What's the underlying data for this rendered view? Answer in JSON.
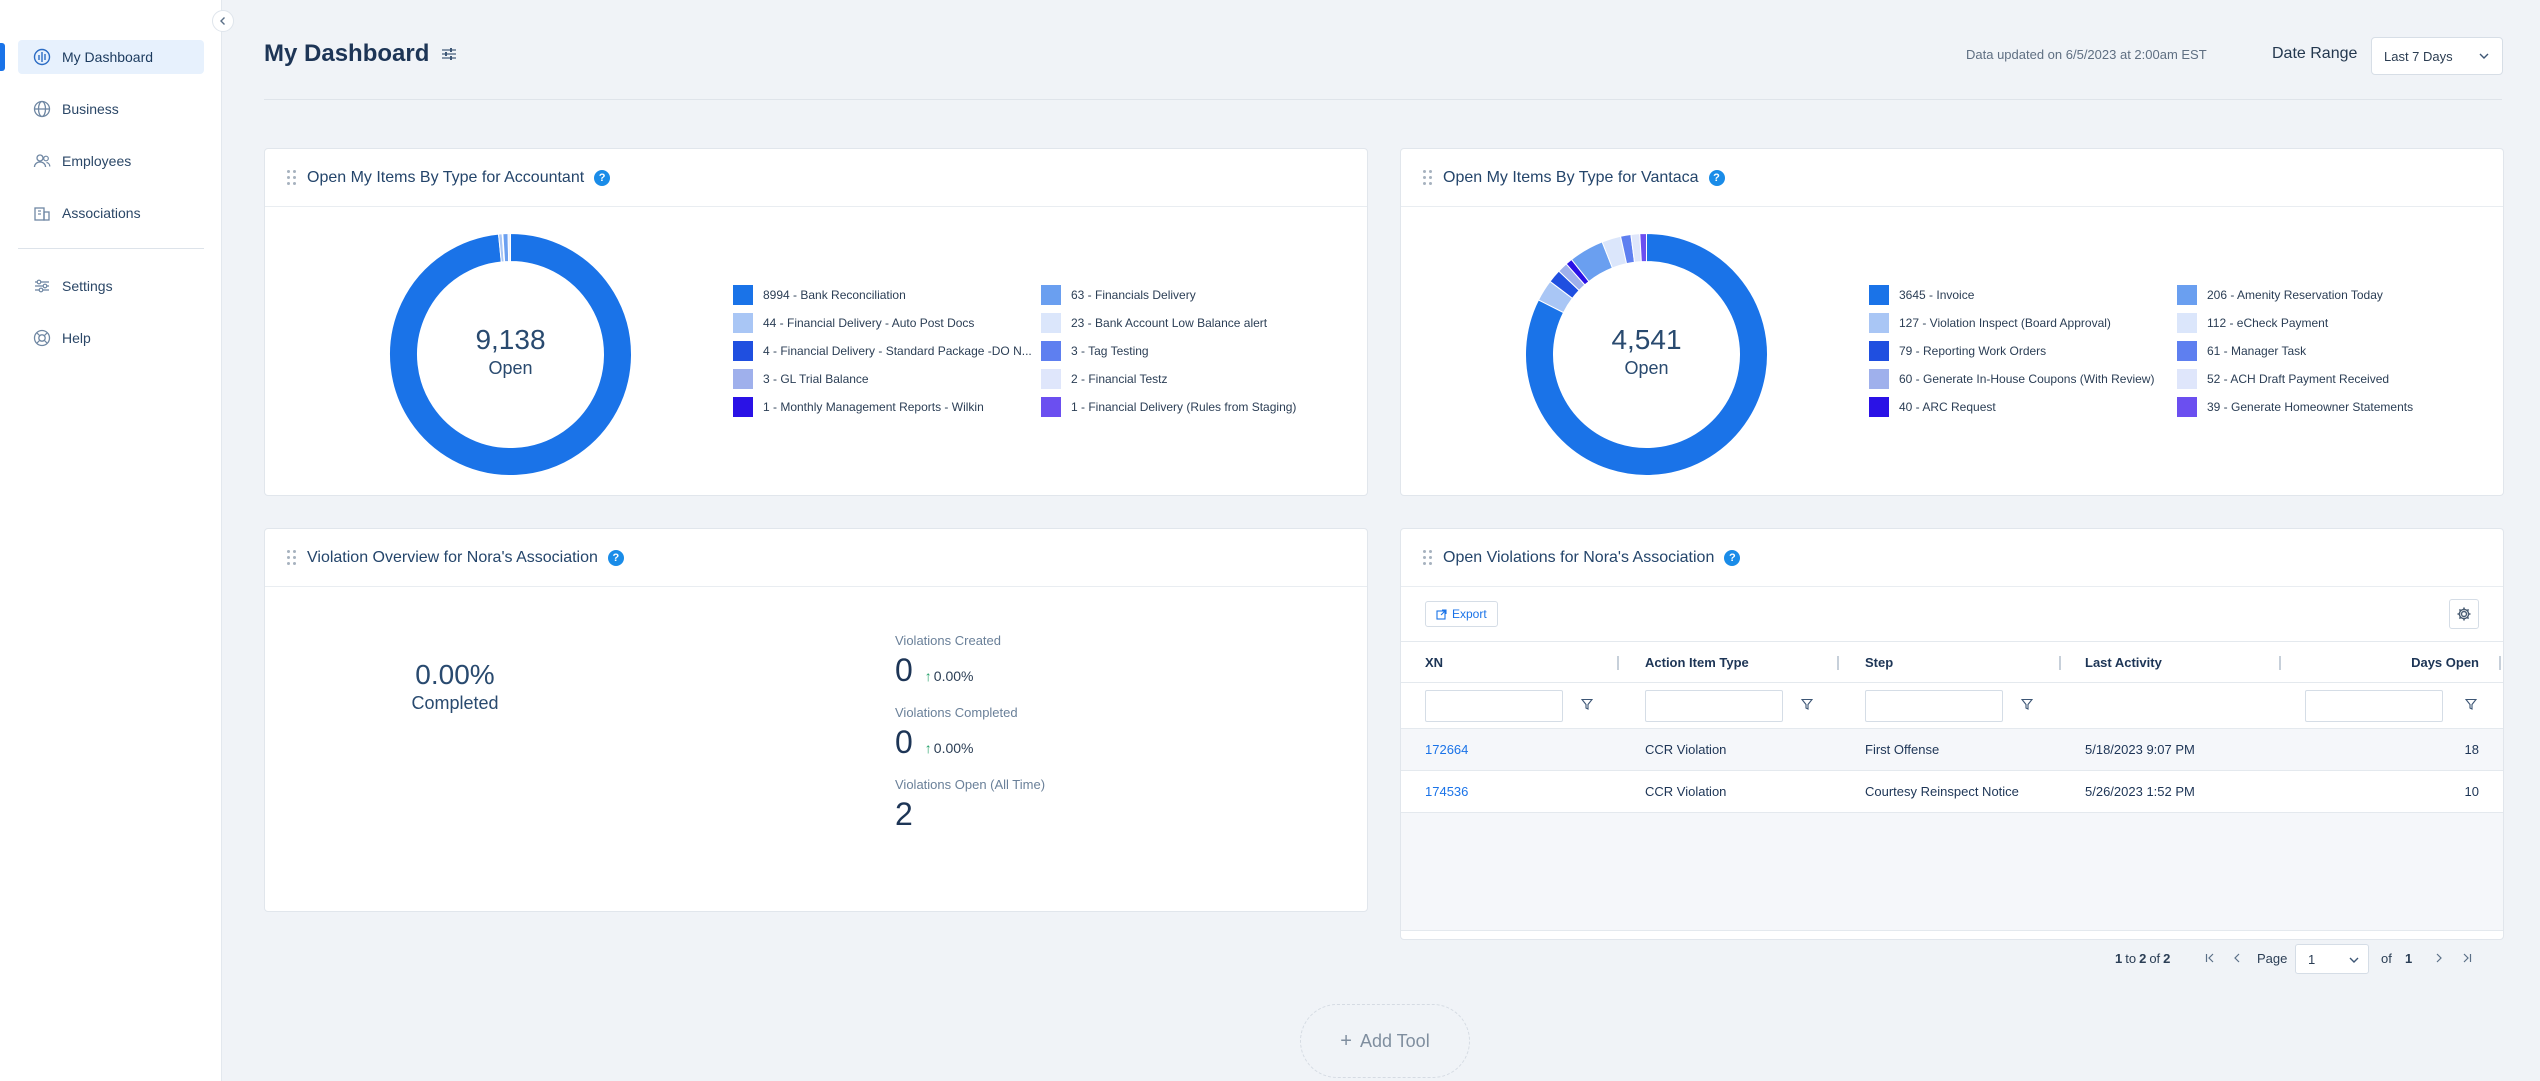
{
  "sidebar": {
    "items": [
      {
        "label": "My Dashboard",
        "icon": "dashboard-icon"
      },
      {
        "label": "Business",
        "icon": "globe-icon"
      },
      {
        "label": "Employees",
        "icon": "people-icon"
      },
      {
        "label": "Associations",
        "icon": "building-icon"
      },
      {
        "label": "Settings",
        "icon": "sliders-icon"
      },
      {
        "label": "Help",
        "icon": "lifebuoy-icon"
      }
    ],
    "active_index": 0
  },
  "header": {
    "title": "My Dashboard",
    "updated_text": "Data updated on 6/5/2023 at 2:00am EST",
    "date_range_label": "Date Range",
    "date_range_value": "Last 7 Days"
  },
  "colors": {
    "accent": "#1a73e8",
    "help_badge": "#1a8ce8",
    "positive": "#1f9d65",
    "sidebar_active_bg": "#e7f1fd"
  },
  "cards": {
    "accountant": {
      "title": "Open My Items By Type for Accountant",
      "total": "9,138",
      "total_label": "Open"
    },
    "vantaca": {
      "title": "Open My Items By Type for Vantaca",
      "total": "4,541",
      "total_label": "Open"
    },
    "violation_overview": {
      "title": "Violation Overview for Nora's Association",
      "completed_pct": "0.00%",
      "completed_label": "Completed",
      "stats": [
        {
          "label": "Violations Created",
          "value": "0",
          "delta": "0.00%"
        },
        {
          "label": "Violations Completed",
          "value": "0",
          "delta": "0.00%"
        },
        {
          "label": "Violations Open (All Time)",
          "value": "2"
        }
      ]
    },
    "open_violations": {
      "title": "Open Violations for Nora's Association",
      "export_label": "Export",
      "columns": [
        "XN",
        "Action Item Type",
        "Step",
        "Last Activity",
        "Days Open"
      ],
      "rows": [
        [
          "172664",
          "CCR Violation",
          "First Offense",
          "5/18/2023 9:07 PM",
          "18"
        ],
        [
          "174536",
          "CCR Violation",
          "Courtesy Reinspect Notice",
          "5/26/2023 1:52 PM",
          "10"
        ]
      ],
      "pager": {
        "range_start": "1",
        "range_to": "to",
        "range_end": "2",
        "range_of": "of",
        "range_total": "2",
        "page_label": "Page",
        "page_value": "1",
        "of_label": "of",
        "total_pages": "1"
      }
    }
  },
  "chart_data": [
    {
      "type": "pie",
      "title": "Open My Items By Type for Accountant",
      "donut": true,
      "center_text": "9,138 Open",
      "labels": [
        "8994 - Bank Reconciliation",
        "44 - Financial Delivery - Auto Post Docs",
        "4 - Financial Delivery - Standard Package -DO N...",
        "3 - GL Trial Balance",
        "1 - Monthly Management Reports - Wilkin",
        "63 - Financials Delivery",
        "23 - Bank Account Low Balance alert",
        "3 - Tag Testing",
        "2 - Financial Testz",
        "1 - Financial Delivery (Rules from Staging)"
      ],
      "values": [
        8994,
        44,
        4,
        3,
        1,
        63,
        23,
        3,
        2,
        1
      ],
      "colors": [
        "#1a73e8",
        "#a9c6f5",
        "#1f4fe0",
        "#9fb0ec",
        "#2a12e6",
        "#6a9ff0",
        "#dbe6fb",
        "#5e7ff0",
        "#dfe6fb",
        "#6b4ff0"
      ]
    },
    {
      "type": "pie",
      "title": "Open My Items By Type for Vantaca",
      "donut": true,
      "center_text": "4,541 Open",
      "labels": [
        "3645 - Invoice",
        "127 - Violation Inspect (Board Approval)",
        "79 - Reporting Work Orders",
        "60 - Generate In-House Coupons (With Review)",
        "40 - ARC Request",
        "206 - Amenity Reservation Today",
        "112 - eCheck Payment",
        "61 - Manager Task",
        "52 - ACH Draft Payment Received",
        "39 - Generate Homeowner Statements"
      ],
      "values": [
        3645,
        127,
        79,
        60,
        40,
        206,
        112,
        61,
        52,
        39
      ],
      "colors": [
        "#1a73e8",
        "#a9c6f5",
        "#1f4fe0",
        "#9fb0ec",
        "#2a12e6",
        "#6a9ff0",
        "#dbe6fb",
        "#5e7ff0",
        "#dfe6fb",
        "#6b4ff0"
      ]
    }
  ],
  "add_tool_label": "Add Tool"
}
